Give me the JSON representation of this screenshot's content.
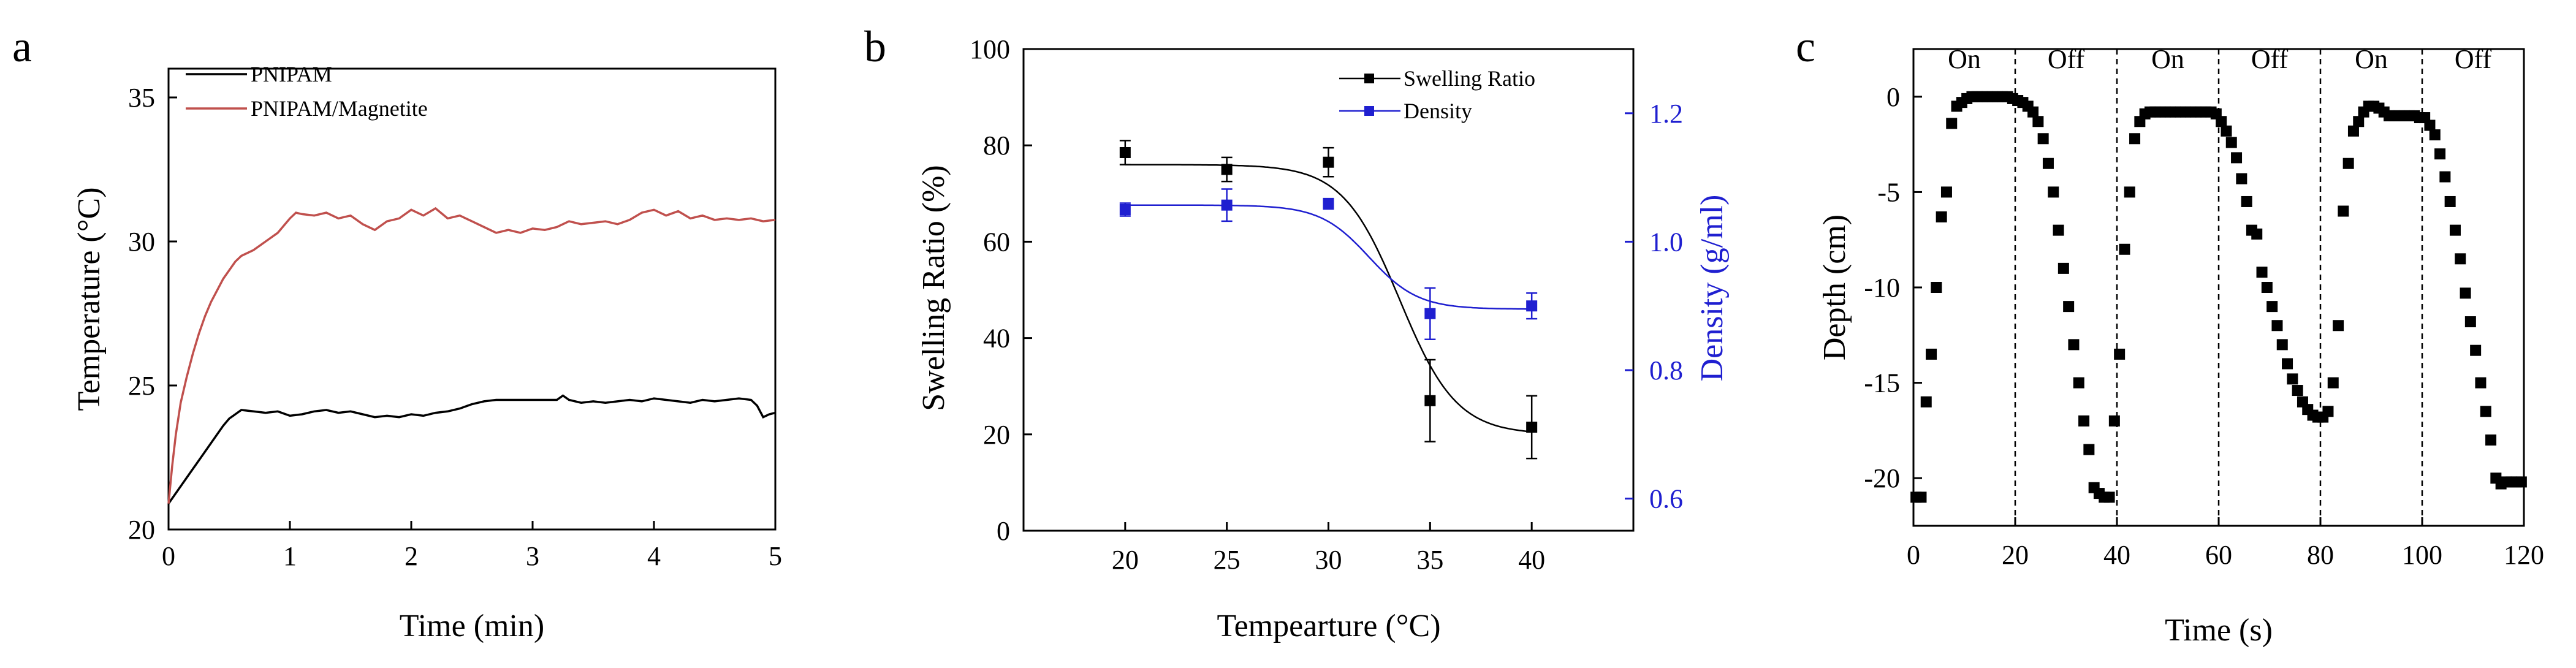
{
  "chart_data": [
    {
      "panel": "a",
      "type": "line",
      "title": "",
      "xlabel": "Time (min)",
      "ylabel": "Temperature (°C)",
      "xlim": [
        0,
        5
      ],
      "ylim": [
        20,
        36
      ],
      "xticks": [
        0,
        1,
        2,
        3,
        4,
        5
      ],
      "yticks": [
        20,
        25,
        30,
        35
      ],
      "legend_position": "top-left",
      "series": [
        {
          "name": "PNIPAM",
          "color": "#000000",
          "points": [
            [
              0,
              20.9
            ],
            [
              0.05,
              21.2
            ],
            [
              0.1,
              21.5
            ],
            [
              0.15,
              21.8
            ],
            [
              0.2,
              22.1
            ],
            [
              0.25,
              22.4
            ],
            [
              0.3,
              22.7
            ],
            [
              0.35,
              23.0
            ],
            [
              0.4,
              23.3
            ],
            [
              0.45,
              23.6
            ],
            [
              0.5,
              23.85
            ],
            [
              0.55,
              24.0
            ],
            [
              0.6,
              24.15
            ],
            [
              0.7,
              24.1
            ],
            [
              0.8,
              24.05
            ],
            [
              0.9,
              24.1
            ],
            [
              1.0,
              23.95
            ],
            [
              1.1,
              24.0
            ],
            [
              1.2,
              24.1
            ],
            [
              1.3,
              24.15
            ],
            [
              1.4,
              24.05
            ],
            [
              1.5,
              24.1
            ],
            [
              1.6,
              24.0
            ],
            [
              1.7,
              23.9
            ],
            [
              1.8,
              23.95
            ],
            [
              1.9,
              23.9
            ],
            [
              2.0,
              24.0
            ],
            [
              2.1,
              23.95
            ],
            [
              2.2,
              24.05
            ],
            [
              2.3,
              24.1
            ],
            [
              2.4,
              24.2
            ],
            [
              2.5,
              24.35
            ],
            [
              2.6,
              24.45
            ],
            [
              2.7,
              24.5
            ],
            [
              2.8,
              24.5
            ],
            [
              2.9,
              24.5
            ],
            [
              3.0,
              24.5
            ],
            [
              3.1,
              24.5
            ],
            [
              3.2,
              24.5
            ],
            [
              3.25,
              24.65
            ],
            [
              3.3,
              24.5
            ],
            [
              3.4,
              24.4
            ],
            [
              3.5,
              24.45
            ],
            [
              3.6,
              24.4
            ],
            [
              3.7,
              24.45
            ],
            [
              3.8,
              24.5
            ],
            [
              3.9,
              24.45
            ],
            [
              4.0,
              24.55
            ],
            [
              4.1,
              24.5
            ],
            [
              4.2,
              24.45
            ],
            [
              4.3,
              24.4
            ],
            [
              4.4,
              24.5
            ],
            [
              4.5,
              24.45
            ],
            [
              4.6,
              24.5
            ],
            [
              4.7,
              24.55
            ],
            [
              4.8,
              24.5
            ],
            [
              4.85,
              24.3
            ],
            [
              4.9,
              23.9
            ],
            [
              4.95,
              24.0
            ],
            [
              5.0,
              24.05
            ]
          ]
        },
        {
          "name": "PNIPAM/Magnetite",
          "color": "#c0504d",
          "points": [
            [
              0,
              20.9
            ],
            [
              0.03,
              22.2
            ],
            [
              0.06,
              23.3
            ],
            [
              0.1,
              24.4
            ],
            [
              0.15,
              25.3
            ],
            [
              0.2,
              26.1
            ],
            [
              0.25,
              26.8
            ],
            [
              0.3,
              27.4
            ],
            [
              0.35,
              27.9
            ],
            [
              0.4,
              28.3
            ],
            [
              0.45,
              28.7
            ],
            [
              0.5,
              29.0
            ],
            [
              0.55,
              29.3
            ],
            [
              0.6,
              29.5
            ],
            [
              0.7,
              29.7
            ],
            [
              0.8,
              30.0
            ],
            [
              0.9,
              30.3
            ],
            [
              1.0,
              30.8
            ],
            [
              1.05,
              31.0
            ],
            [
              1.1,
              30.95
            ],
            [
              1.2,
              30.9
            ],
            [
              1.3,
              31.0
            ],
            [
              1.4,
              30.8
            ],
            [
              1.5,
              30.9
            ],
            [
              1.6,
              30.6
            ],
            [
              1.7,
              30.4
            ],
            [
              1.8,
              30.7
            ],
            [
              1.9,
              30.8
            ],
            [
              2.0,
              31.1
            ],
            [
              2.1,
              30.9
            ],
            [
              2.2,
              31.15
            ],
            [
              2.3,
              30.8
            ],
            [
              2.4,
              30.9
            ],
            [
              2.5,
              30.7
            ],
            [
              2.6,
              30.5
            ],
            [
              2.7,
              30.3
            ],
            [
              2.8,
              30.4
            ],
            [
              2.9,
              30.3
            ],
            [
              3.0,
              30.45
            ],
            [
              3.1,
              30.4
            ],
            [
              3.2,
              30.5
            ],
            [
              3.3,
              30.7
            ],
            [
              3.4,
              30.6
            ],
            [
              3.5,
              30.65
            ],
            [
              3.6,
              30.7
            ],
            [
              3.7,
              30.6
            ],
            [
              3.8,
              30.75
            ],
            [
              3.9,
              31.0
            ],
            [
              4.0,
              31.1
            ],
            [
              4.1,
              30.9
            ],
            [
              4.2,
              31.05
            ],
            [
              4.3,
              30.8
            ],
            [
              4.4,
              30.9
            ],
            [
              4.5,
              30.75
            ],
            [
              4.6,
              30.8
            ],
            [
              4.7,
              30.75
            ],
            [
              4.8,
              30.8
            ],
            [
              4.9,
              30.7
            ],
            [
              5.0,
              30.75
            ]
          ]
        }
      ]
    },
    {
      "panel": "b",
      "type": "scatter",
      "title": "",
      "xlabel": "Tempearture (°C)",
      "ylabel": "Swelling Ratio (%)",
      "y2label": "Density (g/ml)",
      "xlim": [
        15,
        45
      ],
      "ylim": [
        0,
        100
      ],
      "y2lim": [
        0.55,
        1.3
      ],
      "xticks": [
        20,
        25,
        30,
        35,
        40
      ],
      "yticks": [
        0,
        20,
        40,
        60,
        80,
        100
      ],
      "y2ticks": [
        0.6,
        0.8,
        1.0,
        1.2
      ],
      "y2ticklabels": [
        "0.6",
        "0.8",
        "1.0",
        "1.2"
      ],
      "legend_position": "top-right",
      "series": [
        {
          "name": "Swelling Ratio",
          "color": "#000000",
          "axis": "left",
          "x": [
            20,
            25,
            30,
            35,
            40
          ],
          "y": [
            78.5,
            75,
            76.5,
            27,
            21.5
          ],
          "err": [
            2.5,
            2.5,
            3,
            8.5,
            6.5
          ]
        },
        {
          "name": "Density",
          "color": "#1f1fd0",
          "axis": "right",
          "x": [
            20,
            25,
            30,
            35,
            40
          ],
          "y": [
            1.05,
            1.057,
            1.059,
            0.888,
            0.9
          ],
          "err": [
            0.01,
            0.025,
            0.008,
            0.04,
            0.02
          ]
        }
      ]
    },
    {
      "panel": "c",
      "type": "scatter",
      "title": "",
      "xlabel": "Time (s)",
      "ylabel": "Depth (cm)",
      "xlim": [
        0,
        120
      ],
      "ylim": [
        -22.5,
        2.5
      ],
      "xticks": [
        0,
        20,
        40,
        60,
        80,
        100,
        120
      ],
      "yticks": [
        0,
        -5,
        -10,
        -15,
        -20
      ],
      "dividers": [
        20,
        40,
        60,
        80,
        100
      ],
      "annotations": [
        {
          "text": "On",
          "x": 10
        },
        {
          "text": "Off",
          "x": 30
        },
        {
          "text": "On",
          "x": 50
        },
        {
          "text": "Off",
          "x": 70
        },
        {
          "text": "On",
          "x": 90
        },
        {
          "text": "Off",
          "x": 110
        }
      ],
      "series": [
        {
          "name": "Depth",
          "color": "#000000",
          "points": [
            [
              0.5,
              -21
            ],
            [
              1.5,
              -21
            ],
            [
              2.5,
              -16
            ],
            [
              3.5,
              -13.5
            ],
            [
              4.5,
              -10
            ],
            [
              5.5,
              -6.3
            ],
            [
              6.5,
              -5
            ],
            [
              7.5,
              -1.4
            ],
            [
              8.5,
              -0.5
            ],
            [
              9.5,
              -0.3
            ],
            [
              10.5,
              -0.1
            ],
            [
              11.5,
              0
            ],
            [
              12.5,
              0
            ],
            [
              13.5,
              0
            ],
            [
              14.5,
              0
            ],
            [
              15.5,
              0
            ],
            [
              16.5,
              0
            ],
            [
              17.5,
              0
            ],
            [
              18.5,
              0
            ],
            [
              19.5,
              -0.1
            ],
            [
              20.5,
              -0.2
            ],
            [
              21.5,
              -0.3
            ],
            [
              22.5,
              -0.5
            ],
            [
              23.5,
              -0.8
            ],
            [
              24.5,
              -1.3
            ],
            [
              25.5,
              -2.2
            ],
            [
              26.5,
              -3.5
            ],
            [
              27.5,
              -5
            ],
            [
              28.5,
              -7
            ],
            [
              29.5,
              -9
            ],
            [
              30.5,
              -11
            ],
            [
              31.5,
              -13
            ],
            [
              32.5,
              -15
            ],
            [
              33.5,
              -17
            ],
            [
              34.5,
              -18.5
            ],
            [
              35.5,
              -20.5
            ],
            [
              36.5,
              -20.8
            ],
            [
              37.5,
              -21
            ],
            [
              38.5,
              -21
            ],
            [
              39.5,
              -17
            ],
            [
              40.5,
              -13.5
            ],
            [
              41.5,
              -8
            ],
            [
              42.5,
              -5
            ],
            [
              43.5,
              -2.2
            ],
            [
              44.5,
              -1.3
            ],
            [
              45.5,
              -0.9
            ],
            [
              46.5,
              -0.8
            ],
            [
              47.5,
              -0.8
            ],
            [
              48.5,
              -0.8
            ],
            [
              49.5,
              -0.8
            ],
            [
              50.5,
              -0.8
            ],
            [
              51.5,
              -0.8
            ],
            [
              52.5,
              -0.8
            ],
            [
              53.5,
              -0.8
            ],
            [
              54.5,
              -0.8
            ],
            [
              55.5,
              -0.8
            ],
            [
              56.5,
              -0.8
            ],
            [
              57.5,
              -0.8
            ],
            [
              58.5,
              -0.8
            ],
            [
              59.5,
              -0.9
            ],
            [
              60.5,
              -1.3
            ],
            [
              61.5,
              -1.8
            ],
            [
              62.5,
              -2.4
            ],
            [
              63.5,
              -3.2
            ],
            [
              64.5,
              -4.3
            ],
            [
              65.5,
              -5.5
            ],
            [
              66.5,
              -7
            ],
            [
              67.5,
              -7.2
            ],
            [
              68.5,
              -9.2
            ],
            [
              69.5,
              -10
            ],
            [
              70.5,
              -11
            ],
            [
              71.5,
              -12
            ],
            [
              72.5,
              -13
            ],
            [
              73.5,
              -14
            ],
            [
              74.5,
              -14.8
            ],
            [
              75.5,
              -15.4
            ],
            [
              76.5,
              -16
            ],
            [
              77.5,
              -16.4
            ],
            [
              78.5,
              -16.7
            ],
            [
              79.5,
              -16.8
            ],
            [
              80.5,
              -16.8
            ],
            [
              81.5,
              -16.5
            ],
            [
              82.5,
              -15
            ],
            [
              83.5,
              -12
            ],
            [
              84.5,
              -6
            ],
            [
              85.5,
              -3.5
            ],
            [
              86.5,
              -1.8
            ],
            [
              87.5,
              -1.3
            ],
            [
              88.5,
              -0.8
            ],
            [
              89.5,
              -0.5
            ],
            [
              90.5,
              -0.5
            ],
            [
              91.5,
              -0.6
            ],
            [
              92.5,
              -0.8
            ],
            [
              93.5,
              -1
            ],
            [
              94.5,
              -1
            ],
            [
              95.5,
              -1
            ],
            [
              96.5,
              -1
            ],
            [
              97.5,
              -1
            ],
            [
              98.5,
              -1
            ],
            [
              99.5,
              -1.1
            ],
            [
              100.5,
              -1.1
            ],
            [
              101.5,
              -1.5
            ],
            [
              102.5,
              -2
            ],
            [
              103.5,
              -3
            ],
            [
              104.5,
              -4.2
            ],
            [
              105.5,
              -5.5
            ],
            [
              106.5,
              -7
            ],
            [
              107.5,
              -8.5
            ],
            [
              108.5,
              -10.3
            ],
            [
              109.5,
              -11.8
            ],
            [
              110.5,
              -13.3
            ],
            [
              111.5,
              -15
            ],
            [
              112.5,
              -16.5
            ],
            [
              113.5,
              -18
            ],
            [
              114.5,
              -20
            ],
            [
              115.5,
              -20.3
            ],
            [
              116.5,
              -20.2
            ],
            [
              117.5,
              -20.2
            ],
            [
              118.5,
              -20.2
            ],
            [
              119.5,
              -20.2
            ]
          ]
        }
      ]
    }
  ]
}
